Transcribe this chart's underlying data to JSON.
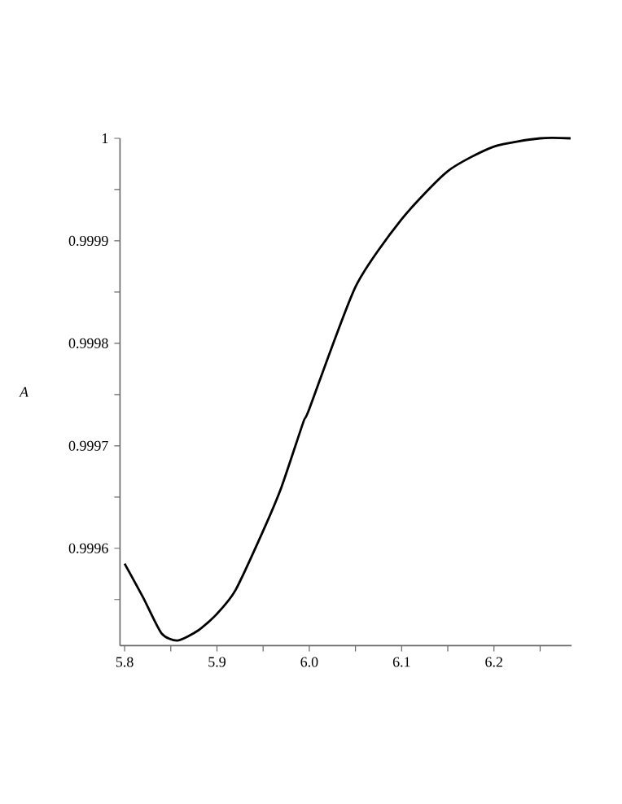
{
  "chart_data": {
    "type": "line",
    "ylabel": "A",
    "color": "#000000",
    "marker": "none",
    "line_style": "solid",
    "grid": false,
    "x": [
      5.8,
      5.82,
      5.84,
      5.8575,
      5.88,
      5.9,
      5.92,
      5.95,
      5.97,
      5.9935,
      6.0,
      6.05,
      6.1,
      6.15,
      6.2,
      6.25,
      6.283
    ],
    "values": [
      0.999585,
      0.999552,
      0.999517,
      0.99951,
      0.99952,
      0.999536,
      0.999559,
      0.999617,
      0.99966,
      0.999723,
      0.999736,
      0.999855,
      0.999921,
      0.999968,
      0.999992,
      1.0,
      1.0
    ],
    "xlim": [
      5.795,
      6.284
    ],
    "ylim": [
      0.999505,
      1.0
    ],
    "xticks": [
      {
        "value": 5.8,
        "label": "5.8"
      },
      {
        "value": 5.85,
        "label": null
      },
      {
        "value": 5.9,
        "label": "5.9"
      },
      {
        "value": 5.95,
        "label": null
      },
      {
        "value": 6.0,
        "label": "6.0"
      },
      {
        "value": 6.05,
        "label": null
      },
      {
        "value": 6.1,
        "label": "6.1"
      },
      {
        "value": 6.15,
        "label": null
      },
      {
        "value": 6.2,
        "label": "6.2"
      },
      {
        "value": 6.25,
        "label": null
      }
    ],
    "yticks": [
      {
        "value": 0.99955,
        "label": null
      },
      0.9996,
      {
        "value": 0.99965,
        "label": null
      },
      0.9997,
      {
        "value": 0.99975,
        "label": null
      },
      0.9998,
      {
        "value": 0.99985,
        "label": null
      },
      0.9999,
      {
        "value": 0.99995,
        "label": null
      },
      1
    ]
  }
}
